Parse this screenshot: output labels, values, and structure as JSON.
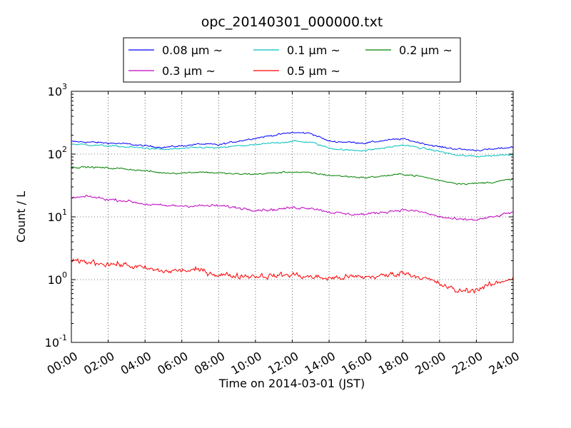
{
  "chart_data": {
    "type": "line",
    "title": "opc_20140301_000000.txt",
    "xlabel": "Time on 2014-03-01 (JST)",
    "ylabel": "Count / L",
    "y_scale": "log",
    "ylim": [
      0.1,
      1000
    ],
    "xlim": [
      "00:00",
      "24:00"
    ],
    "grid": true,
    "legend_position": "top-center",
    "x_ticks": [
      "00:00",
      "02:00",
      "04:00",
      "06:00",
      "08:00",
      "10:00",
      "12:00",
      "14:00",
      "16:00",
      "18:00",
      "20:00",
      "22:00",
      "24:00"
    ],
    "y_ticks": [
      {
        "base": "10",
        "exp": "-1"
      },
      {
        "base": "10",
        "exp": "0"
      },
      {
        "base": "10",
        "exp": "1"
      },
      {
        "base": "10",
        "exp": "2"
      },
      {
        "base": "10",
        "exp": "3"
      }
    ],
    "x": [
      "00:00",
      "01:00",
      "02:00",
      "03:00",
      "04:00",
      "05:00",
      "06:00",
      "07:00",
      "08:00",
      "09:00",
      "10:00",
      "11:00",
      "12:00",
      "13:00",
      "14:00",
      "15:00",
      "16:00",
      "17:00",
      "18:00",
      "19:00",
      "20:00",
      "21:00",
      "22:00",
      "23:00",
      "24:00"
    ],
    "series": [
      {
        "name": "0.08 μm ~",
        "color": "#0000ff",
        "noise": 0.04,
        "values": [
          158,
          155,
          150,
          145,
          135,
          128,
          135,
          145,
          140,
          160,
          180,
          200,
          220,
          215,
          160,
          155,
          150,
          165,
          175,
          150,
          130,
          120,
          115,
          120,
          130
        ]
      },
      {
        "name": "0.1 μm ~",
        "color": "#00bfbf",
        "noise": 0.04,
        "values": [
          145,
          140,
          135,
          130,
          125,
          118,
          122,
          128,
          125,
          135,
          140,
          150,
          160,
          155,
          125,
          115,
          115,
          125,
          140,
          125,
          110,
          95,
          92,
          95,
          100
        ]
      },
      {
        "name": "0.2 μm ~",
        "color": "#008000",
        "noise": 0.04,
        "values": [
          62,
          62,
          60,
          58,
          54,
          50,
          50,
          52,
          50,
          48,
          48,
          50,
          52,
          50,
          46,
          44,
          42,
          45,
          48,
          44,
          38,
          34,
          34,
          36,
          40
        ]
      },
      {
        "name": "0.3 μm ~",
        "color": "#bf00bf",
        "noise": 0.06,
        "values": [
          20,
          21,
          19,
          18,
          16,
          15,
          15,
          15,
          15,
          14,
          13,
          13,
          14,
          14,
          12,
          11,
          11,
          12,
          13,
          12,
          10,
          9,
          9,
          10,
          12
        ]
      },
      {
        "name": "0.5 μm ~",
        "color": "#ff0000",
        "noise": 0.13,
        "values": [
          1.9,
          1.9,
          1.8,
          1.7,
          1.5,
          1.35,
          1.4,
          1.4,
          1.2,
          1.15,
          1.15,
          1.15,
          1.2,
          1.1,
          1.05,
          1.1,
          1.1,
          1.15,
          1.3,
          1.1,
          0.85,
          0.65,
          0.7,
          0.85,
          1.1
        ]
      }
    ]
  }
}
